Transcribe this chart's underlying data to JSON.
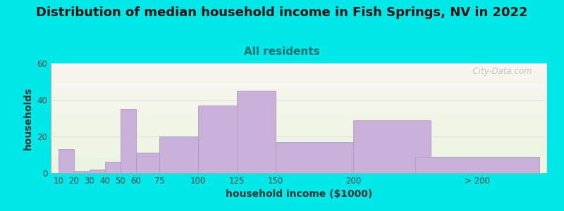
{
  "title": "Distribution of median household income in Fish Springs, NV in 2022",
  "subtitle": "All residents",
  "xlabel": "household income ($1000)",
  "ylabel": "households",
  "bar_heights": [
    13,
    1,
    2,
    6,
    35,
    11,
    20,
    37,
    45,
    17,
    29,
    9
  ],
  "bar_widths": [
    10,
    10,
    10,
    10,
    10,
    15,
    25,
    25,
    25,
    50,
    50,
    80
  ],
  "bar_lefts": [
    10,
    20,
    30,
    40,
    50,
    60,
    75,
    100,
    125,
    150,
    200,
    240
  ],
  "bar_color": "#c8b0d8",
  "bar_edge_color": "#b09ac8",
  "ylim": [
    0,
    60
  ],
  "yticks": [
    0,
    20,
    40,
    60
  ],
  "xtick_positions": [
    10,
    20,
    30,
    40,
    50,
    60,
    75,
    100,
    125,
    150,
    200,
    280
  ],
  "xtick_labels": [
    "10",
    "20",
    "30",
    "40",
    "50",
    "60",
    "75",
    "100",
    "125",
    "150",
    "200",
    "> 200"
  ],
  "background_outer": "#00e8e8",
  "title_fontsize": 13,
  "subtitle_fontsize": 11,
  "axis_label_fontsize": 10,
  "tick_fontsize": 8.5,
  "title_color": "#111111",
  "subtitle_color": "#007070",
  "axis_label_color": "#333333",
  "watermark_text": "  City-Data.com"
}
